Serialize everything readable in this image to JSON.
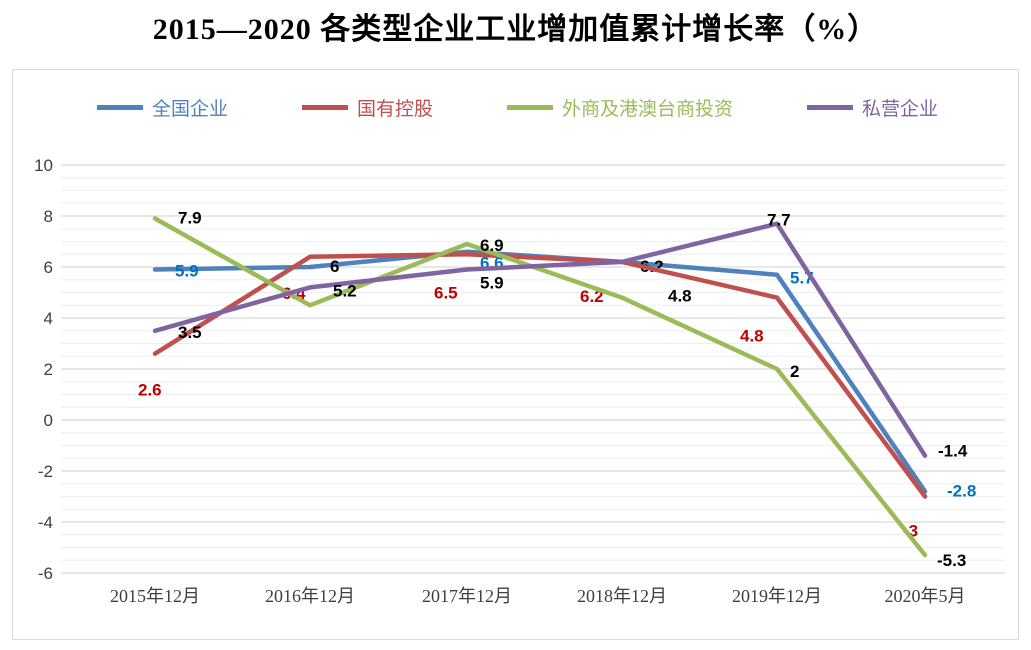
{
  "chart_data": {
    "type": "line",
    "title": "2015—2020 各类型企业工业增加值累计增长率（%）",
    "categories": [
      "2015年12月",
      "2016年12月",
      "2017年12月",
      "2018年12月",
      "2019年12月",
      "2020年5月"
    ],
    "y_ticks": [
      10,
      8,
      6,
      4,
      2,
      0,
      -2,
      -4,
      -6
    ],
    "ylim": [
      -6,
      10
    ],
    "grid": true,
    "legend_position": "top",
    "label_colors": {
      "blue": "#0070C0",
      "red": "#C00000",
      "black": "#000000"
    },
    "series": [
      {
        "name": "全国企业",
        "color": "#4F81BD",
        "values": [
          5.9,
          6,
          6.6,
          6.2,
          5.7,
          -2.8
        ],
        "labels": [
          {
            "text": "5.9",
            "color": "#0070C0"
          },
          {
            "text": "6",
            "color": "#000000"
          },
          {
            "text": "6.6",
            "color": "#0070C0"
          },
          {
            "text": "6.2",
            "color": "#000000"
          },
          {
            "text": "5.7",
            "color": "#0070C0"
          },
          {
            "text": "-2.8",
            "color": "#0070C0"
          }
        ]
      },
      {
        "name": "国有控股",
        "color": "#C0504D",
        "values": [
          2.6,
          6.4,
          6.5,
          6.2,
          4.8,
          -3
        ],
        "labels": [
          {
            "text": "2.6",
            "color": "#C00000"
          },
          {
            "text": "6.4",
            "color": "#C00000"
          },
          {
            "text": "6.5",
            "color": "#C00000"
          },
          {
            "text": "6.2",
            "color": "#C00000"
          },
          {
            "text": "4.8",
            "color": "#C00000"
          },
          {
            "text": "-3",
            "color": "#C00000"
          }
        ]
      },
      {
        "name": "外商及港澳台商投资",
        "color": "#9BBB59",
        "values": [
          7.9,
          4.5,
          6.9,
          4.8,
          2,
          -5.3
        ],
        "labels": [
          {
            "text": "7.9",
            "color": "#000000"
          },
          null,
          {
            "text": "6.9",
            "color": "#000000"
          },
          {
            "text": "4.8",
            "color": "#000000"
          },
          {
            "text": "2",
            "color": "#000000"
          },
          {
            "text": "-5.3",
            "color": "#000000"
          }
        ]
      },
      {
        "name": "私营企业",
        "color": "#8064A2",
        "values": [
          3.5,
          5.2,
          5.9,
          6.2,
          7.7,
          -1.4
        ],
        "labels": [
          {
            "text": "3.5",
            "color": "#000000"
          },
          {
            "text": "5.2",
            "color": "#000000"
          },
          {
            "text": "5.9",
            "color": "#000000"
          },
          null,
          {
            "text": "7.7",
            "color": "#000000"
          },
          {
            "text": "-1.4",
            "color": "#000000"
          }
        ]
      }
    ]
  }
}
